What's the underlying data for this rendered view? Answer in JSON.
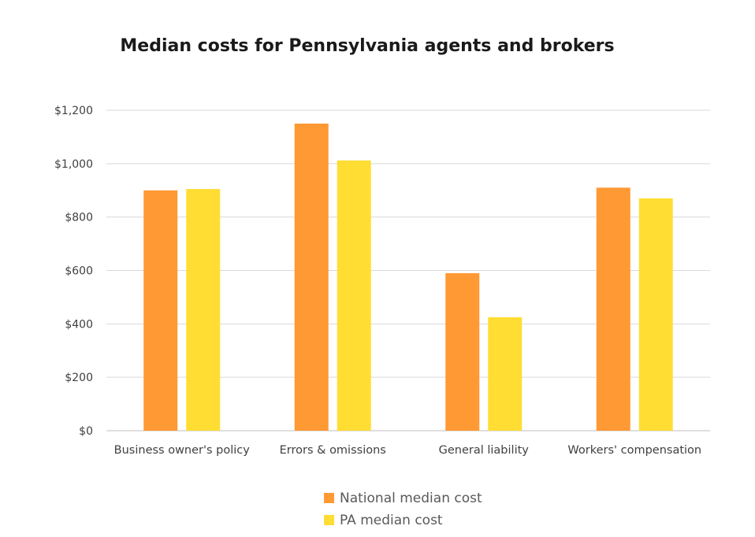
{
  "chart_data": {
    "type": "bar",
    "title": "Median costs for Pennsylvania agents and brokers",
    "categories": [
      "Business owner's policy",
      "Errors & omissions",
      "General liability",
      "Workers' compensation"
    ],
    "series": [
      {
        "name": "National median cost",
        "color": "#FF9933",
        "values": [
          900,
          1150,
          590,
          910
        ]
      },
      {
        "name": "PA median cost",
        "color": "#FFDD33",
        "values": [
          905,
          1012,
          425,
          870
        ]
      }
    ],
    "ylim": [
      0,
      1200
    ],
    "yticks": [
      0,
      200,
      400,
      600,
      800,
      1000,
      1200
    ],
    "ytick_labels": [
      "$0",
      "$200",
      "$400",
      "$600",
      "$800",
      "$1,000",
      "$1,200"
    ],
    "grid": true,
    "legend_position": "bottom"
  }
}
